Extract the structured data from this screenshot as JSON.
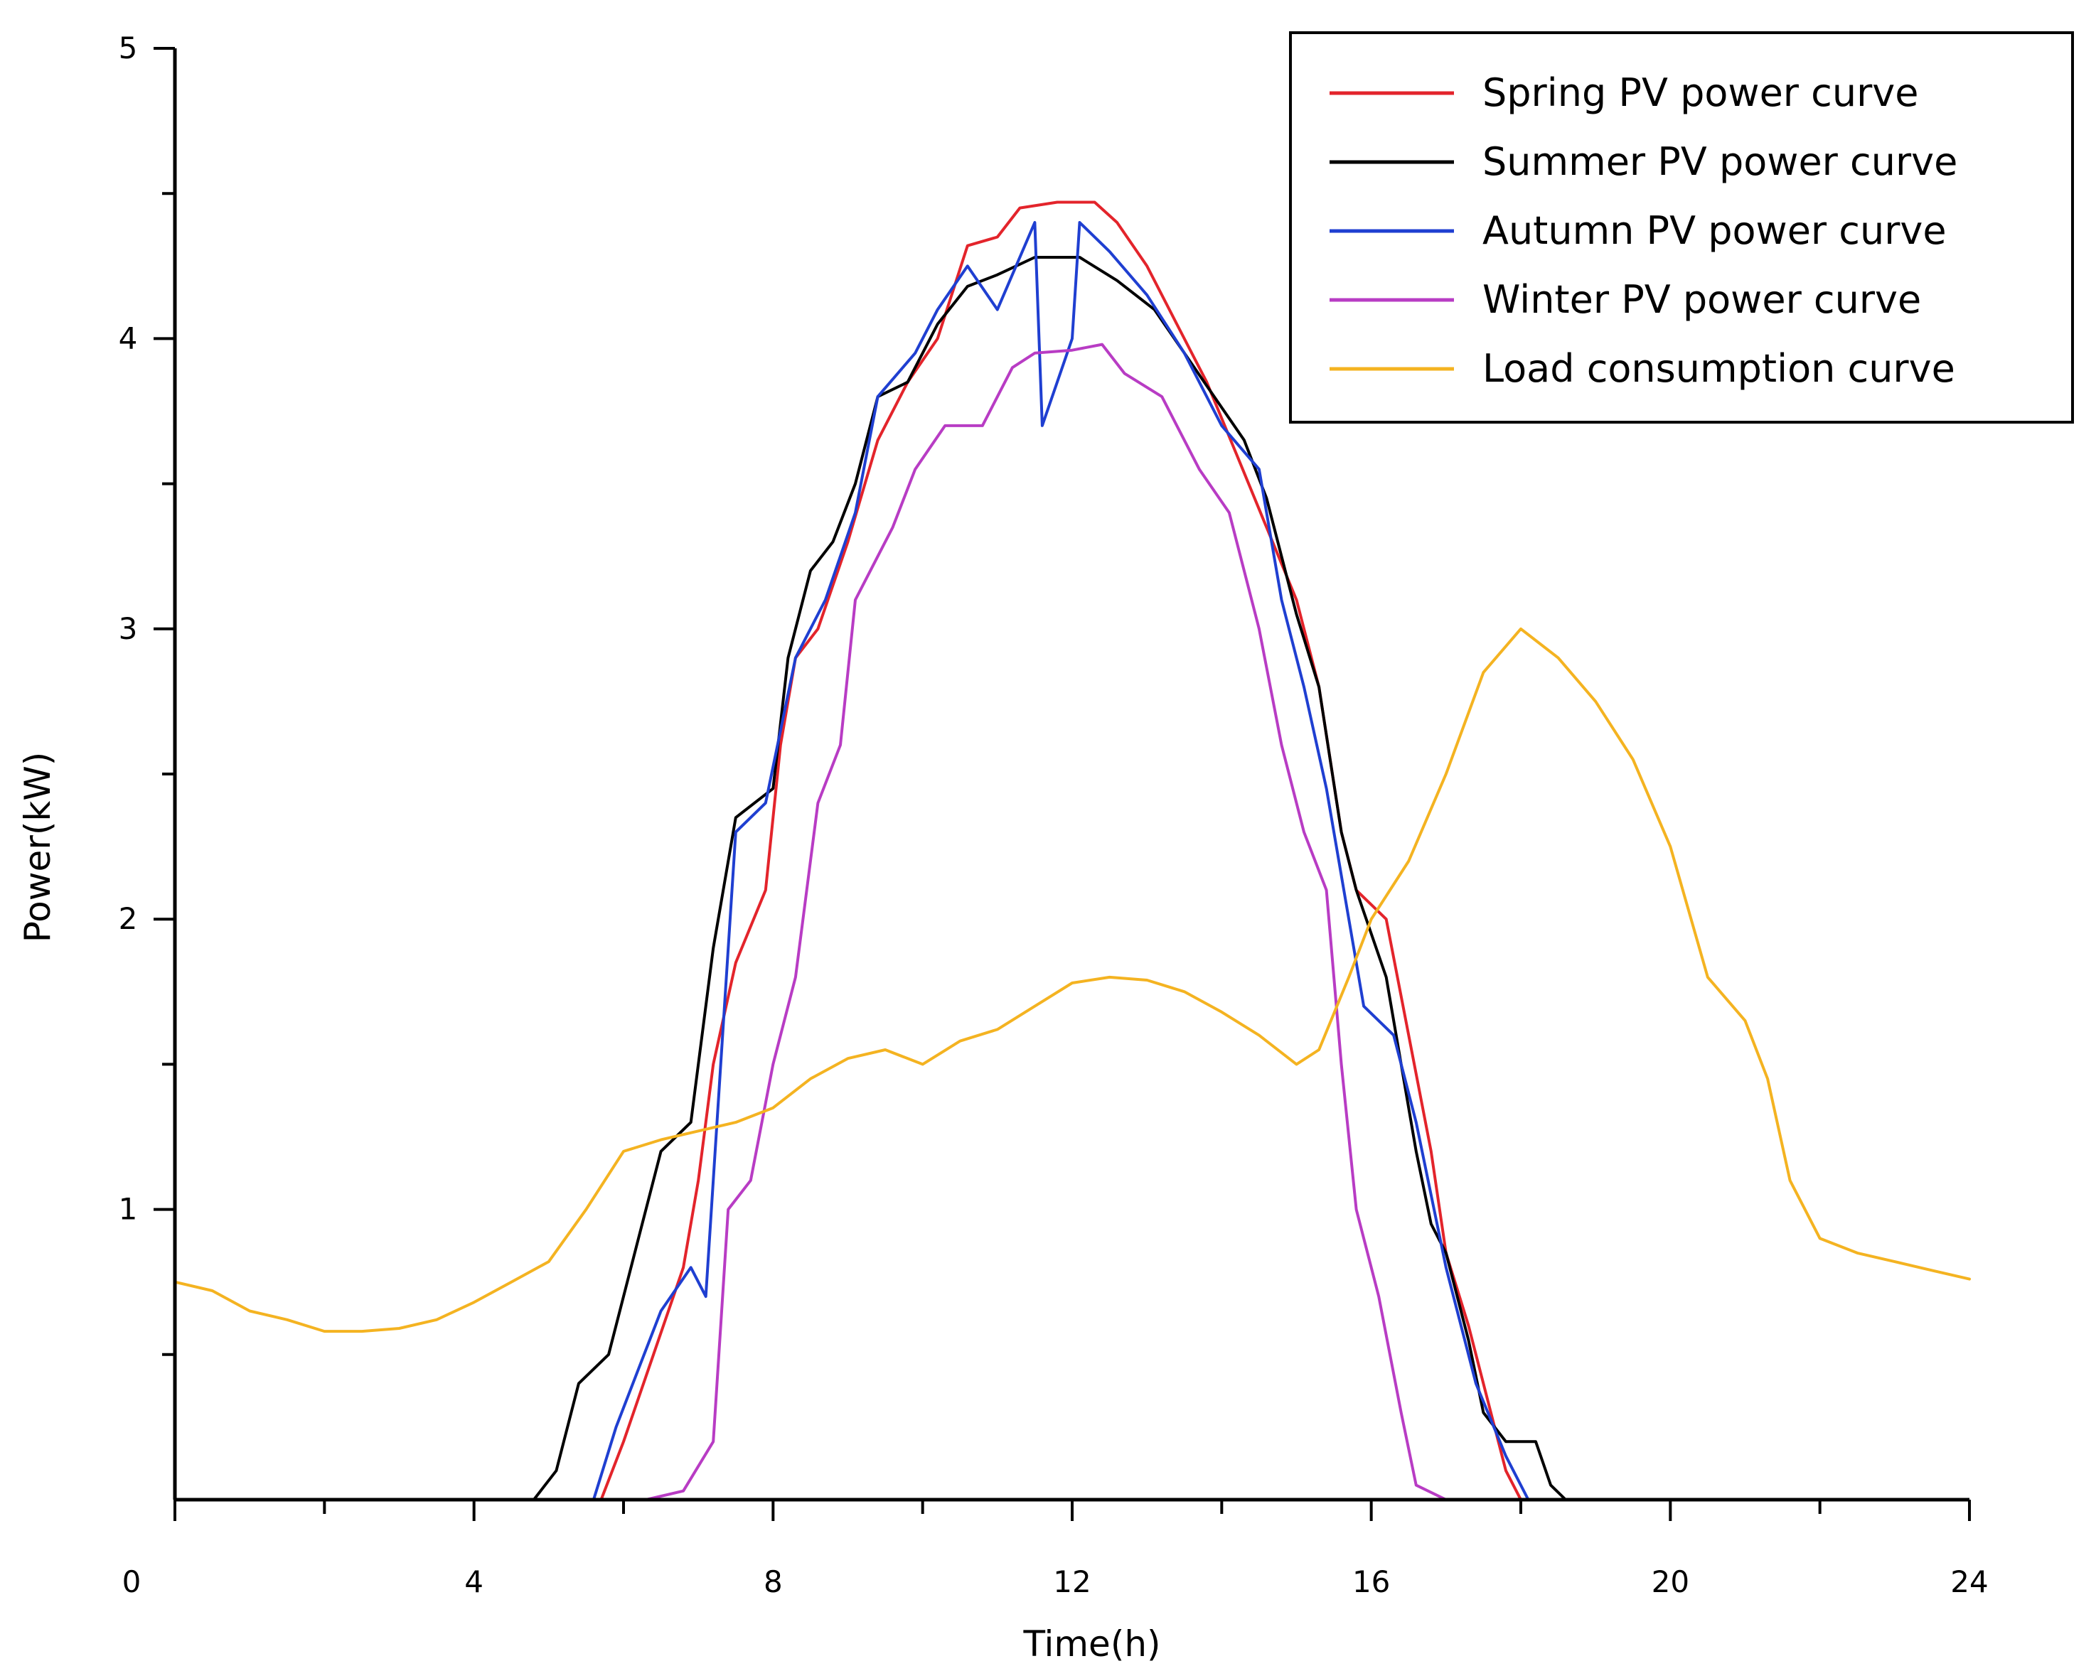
{
  "chart_data": {
    "type": "line",
    "title": "",
    "xlabel": "Time(h)",
    "ylabel": "Power(kW)",
    "xlim": [
      0,
      24
    ],
    "ylim": [
      0,
      5
    ],
    "x_ticks": [
      0,
      4,
      8,
      12,
      16,
      20,
      24
    ],
    "y_ticks": [
      1,
      2,
      3,
      4,
      5
    ],
    "grid": false,
    "legend_position": "top-right",
    "series": [
      {
        "name": "Spring PV power curve",
        "color": "#e3242b",
        "points": [
          [
            5.7,
            0
          ],
          [
            6.0,
            0.2
          ],
          [
            6.4,
            0.5
          ],
          [
            6.8,
            0.8
          ],
          [
            7.0,
            1.1
          ],
          [
            7.2,
            1.5
          ],
          [
            7.5,
            1.85
          ],
          [
            7.9,
            2.1
          ],
          [
            8.1,
            2.6
          ],
          [
            8.3,
            2.9
          ],
          [
            8.6,
            3.0
          ],
          [
            9.0,
            3.3
          ],
          [
            9.4,
            3.65
          ],
          [
            9.8,
            3.85
          ],
          [
            10.2,
            4.0
          ],
          [
            10.6,
            4.32
          ],
          [
            11.0,
            4.35
          ],
          [
            11.3,
            4.45
          ],
          [
            11.8,
            4.47
          ],
          [
            12.3,
            4.47
          ],
          [
            12.6,
            4.4
          ],
          [
            13.0,
            4.25
          ],
          [
            13.4,
            4.05
          ],
          [
            13.8,
            3.85
          ],
          [
            14.2,
            3.6
          ],
          [
            14.6,
            3.35
          ],
          [
            15.0,
            3.1
          ],
          [
            15.3,
            2.8
          ],
          [
            15.6,
            2.3
          ],
          [
            15.8,
            2.1
          ],
          [
            16.2,
            2.0
          ],
          [
            16.5,
            1.6
          ],
          [
            16.8,
            1.2
          ],
          [
            17.0,
            0.85
          ],
          [
            17.3,
            0.6
          ],
          [
            17.6,
            0.3
          ],
          [
            17.8,
            0.1
          ],
          [
            18.0,
            0
          ]
        ]
      },
      {
        "name": "Summer PV power curve",
        "color": "#000000",
        "points": [
          [
            4.8,
            0
          ],
          [
            5.1,
            0.1
          ],
          [
            5.4,
            0.4
          ],
          [
            5.8,
            0.5
          ],
          [
            6.2,
            0.9
          ],
          [
            6.5,
            1.2
          ],
          [
            6.9,
            1.3
          ],
          [
            7.2,
            1.9
          ],
          [
            7.5,
            2.35
          ],
          [
            8.0,
            2.45
          ],
          [
            8.2,
            2.9
          ],
          [
            8.5,
            3.2
          ],
          [
            8.8,
            3.3
          ],
          [
            9.1,
            3.5
          ],
          [
            9.4,
            3.8
          ],
          [
            9.8,
            3.85
          ],
          [
            10.2,
            4.05
          ],
          [
            10.6,
            4.18
          ],
          [
            11.0,
            4.22
          ],
          [
            11.5,
            4.28
          ],
          [
            12.1,
            4.28
          ],
          [
            12.6,
            4.2
          ],
          [
            13.1,
            4.1
          ],
          [
            13.5,
            3.95
          ],
          [
            13.9,
            3.8
          ],
          [
            14.3,
            3.65
          ],
          [
            14.6,
            3.45
          ],
          [
            15.0,
            3.05
          ],
          [
            15.3,
            2.8
          ],
          [
            15.6,
            2.3
          ],
          [
            15.8,
            2.1
          ],
          [
            16.2,
            1.8
          ],
          [
            16.4,
            1.5
          ],
          [
            16.6,
            1.2
          ],
          [
            16.8,
            0.95
          ],
          [
            17.0,
            0.85
          ],
          [
            17.3,
            0.55
          ],
          [
            17.5,
            0.3
          ],
          [
            17.8,
            0.2
          ],
          [
            18.2,
            0.2
          ],
          [
            18.4,
            0.05
          ],
          [
            18.6,
            0
          ]
        ]
      },
      {
        "name": "Autumn PV power curve",
        "color": "#1f3fd1",
        "points": [
          [
            5.6,
            0
          ],
          [
            5.9,
            0.25
          ],
          [
            6.2,
            0.45
          ],
          [
            6.5,
            0.65
          ],
          [
            6.9,
            0.8
          ],
          [
            7.1,
            0.7
          ],
          [
            7.3,
            1.5
          ],
          [
            7.5,
            2.3
          ],
          [
            7.9,
            2.4
          ],
          [
            8.3,
            2.9
          ],
          [
            8.7,
            3.1
          ],
          [
            9.1,
            3.4
          ],
          [
            9.4,
            3.8
          ],
          [
            9.9,
            3.95
          ],
          [
            10.2,
            4.1
          ],
          [
            10.6,
            4.25
          ],
          [
            11.0,
            4.1
          ],
          [
            11.5,
            4.4
          ],
          [
            11.6,
            3.7
          ],
          [
            12.0,
            4.0
          ],
          [
            12.1,
            4.4
          ],
          [
            12.5,
            4.3
          ],
          [
            13.0,
            4.15
          ],
          [
            13.5,
            3.95
          ],
          [
            14.0,
            3.7
          ],
          [
            14.5,
            3.55
          ],
          [
            14.8,
            3.1
          ],
          [
            15.1,
            2.8
          ],
          [
            15.4,
            2.45
          ],
          [
            15.6,
            2.15
          ],
          [
            15.9,
            1.7
          ],
          [
            16.3,
            1.6
          ],
          [
            16.6,
            1.3
          ],
          [
            17.0,
            0.8
          ],
          [
            17.4,
            0.4
          ],
          [
            17.8,
            0.15
          ],
          [
            18.1,
            0
          ]
        ]
      },
      {
        "name": "Winter PV power curve",
        "color": "#b83cc4",
        "points": [
          [
            6.3,
            0
          ],
          [
            6.8,
            0.03
          ],
          [
            7.2,
            0.2
          ],
          [
            7.4,
            1.0
          ],
          [
            7.7,
            1.1
          ],
          [
            8.0,
            1.5
          ],
          [
            8.3,
            1.8
          ],
          [
            8.6,
            2.4
          ],
          [
            8.9,
            2.6
          ],
          [
            9.1,
            3.1
          ],
          [
            9.3,
            3.2
          ],
          [
            9.6,
            3.35
          ],
          [
            9.9,
            3.55
          ],
          [
            10.3,
            3.7
          ],
          [
            10.8,
            3.7
          ],
          [
            11.2,
            3.9
          ],
          [
            11.5,
            3.95
          ],
          [
            12.0,
            3.96
          ],
          [
            12.4,
            3.98
          ],
          [
            12.7,
            3.88
          ],
          [
            13.2,
            3.8
          ],
          [
            13.7,
            3.55
          ],
          [
            14.1,
            3.4
          ],
          [
            14.5,
            3.0
          ],
          [
            14.8,
            2.6
          ],
          [
            15.1,
            2.3
          ],
          [
            15.4,
            2.1
          ],
          [
            15.6,
            1.5
          ],
          [
            15.8,
            1.0
          ],
          [
            16.1,
            0.7
          ],
          [
            16.4,
            0.3
          ],
          [
            16.6,
            0.05
          ],
          [
            17.0,
            0
          ]
        ]
      },
      {
        "name": "Load consumption curve",
        "color": "#f4b321",
        "points": [
          [
            0,
            0.75
          ],
          [
            0.5,
            0.72
          ],
          [
            1,
            0.65
          ],
          [
            1.5,
            0.62
          ],
          [
            2,
            0.58
          ],
          [
            2.5,
            0.58
          ],
          [
            3,
            0.59
          ],
          [
            3.5,
            0.62
          ],
          [
            4,
            0.68
          ],
          [
            4.5,
            0.75
          ],
          [
            5,
            0.82
          ],
          [
            5.5,
            1.0
          ],
          [
            6,
            1.2
          ],
          [
            6.5,
            1.24
          ],
          [
            7,
            1.27
          ],
          [
            7.5,
            1.3
          ],
          [
            8,
            1.35
          ],
          [
            8.5,
            1.45
          ],
          [
            9,
            1.52
          ],
          [
            9.5,
            1.55
          ],
          [
            10,
            1.5
          ],
          [
            10.5,
            1.58
          ],
          [
            11,
            1.62
          ],
          [
            11.5,
            1.7
          ],
          [
            12,
            1.78
          ],
          [
            12.5,
            1.8
          ],
          [
            13,
            1.79
          ],
          [
            13.5,
            1.75
          ],
          [
            14,
            1.68
          ],
          [
            14.5,
            1.6
          ],
          [
            15,
            1.5
          ],
          [
            15.3,
            1.55
          ],
          [
            15.7,
            1.8
          ],
          [
            16,
            2.0
          ],
          [
            16.5,
            2.2
          ],
          [
            17,
            2.5
          ],
          [
            17.5,
            2.85
          ],
          [
            18,
            3.0
          ],
          [
            18.5,
            2.9
          ],
          [
            19,
            2.75
          ],
          [
            19.5,
            2.55
          ],
          [
            20,
            2.25
          ],
          [
            20.5,
            1.8
          ],
          [
            21,
            1.65
          ],
          [
            21.3,
            1.45
          ],
          [
            21.6,
            1.1
          ],
          [
            22,
            0.9
          ],
          [
            22.5,
            0.85
          ],
          [
            23,
            0.82
          ],
          [
            23.5,
            0.79
          ],
          [
            24,
            0.76
          ]
        ]
      }
    ]
  }
}
